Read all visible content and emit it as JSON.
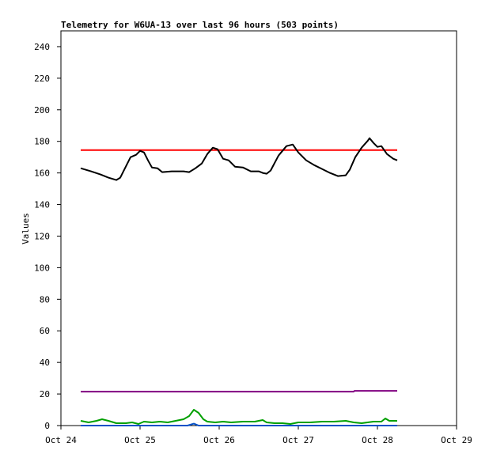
{
  "chart_data": {
    "type": "line",
    "title": "Telemetry for W6UA-13 over last 96 hours (503 points)",
    "ylabel": "Values",
    "xlabel": "",
    "ylim": [
      0,
      250
    ],
    "xlim": [
      "Oct 24",
      "Oct 29"
    ],
    "x_ticks": [
      "Oct 24",
      "Oct 25",
      "Oct 26",
      "Oct 27",
      "Oct 28",
      "Oct 29"
    ],
    "y_ticks": [
      0,
      20,
      40,
      60,
      80,
      100,
      120,
      140,
      160,
      180,
      200,
      220,
      240
    ],
    "grid": false,
    "series": [
      {
        "color": "#ff0000",
        "points": [
          [
            0.25,
            174.5
          ],
          [
            4.25,
            174.5
          ]
        ]
      },
      {
        "color": "#000000",
        "points": [
          [
            0.25,
            163
          ],
          [
            0.38,
            161
          ],
          [
            0.5,
            159
          ],
          [
            0.6,
            157
          ],
          [
            0.7,
            155.5
          ],
          [
            0.75,
            157
          ],
          [
            0.8,
            162
          ],
          [
            0.88,
            170
          ],
          [
            0.95,
            171.5
          ],
          [
            1.0,
            174
          ],
          [
            1.05,
            173
          ],
          [
            1.1,
            168
          ],
          [
            1.15,
            163.5
          ],
          [
            1.22,
            163
          ],
          [
            1.28,
            160.5
          ],
          [
            1.4,
            161
          ],
          [
            1.55,
            161
          ],
          [
            1.62,
            160.5
          ],
          [
            1.7,
            163
          ],
          [
            1.78,
            166
          ],
          [
            1.85,
            172
          ],
          [
            1.92,
            176
          ],
          [
            1.98,
            175
          ],
          [
            2.05,
            169
          ],
          [
            2.12,
            168
          ],
          [
            2.2,
            164
          ],
          [
            2.3,
            163.5
          ],
          [
            2.4,
            161
          ],
          [
            2.5,
            161
          ],
          [
            2.55,
            160
          ],
          [
            2.6,
            159.5
          ],
          [
            2.65,
            161.5
          ],
          [
            2.75,
            171
          ],
          [
            2.85,
            177
          ],
          [
            2.93,
            178
          ],
          [
            3.0,
            173
          ],
          [
            3.1,
            168
          ],
          [
            3.2,
            165
          ],
          [
            3.3,
            162.5
          ],
          [
            3.4,
            160
          ],
          [
            3.5,
            158
          ],
          [
            3.6,
            158.5
          ],
          [
            3.65,
            162
          ],
          [
            3.72,
            170
          ],
          [
            3.8,
            176
          ],
          [
            3.88,
            180.5
          ],
          [
            3.9,
            182
          ],
          [
            3.95,
            179
          ],
          [
            4.0,
            176.5
          ],
          [
            4.05,
            177
          ],
          [
            4.12,
            172
          ],
          [
            4.2,
            169
          ],
          [
            4.25,
            168
          ]
        ]
      },
      {
        "color": "#800080",
        "points": [
          [
            0.25,
            21.5
          ],
          [
            3.7,
            21.5
          ],
          [
            3.71,
            22
          ],
          [
            4.25,
            22
          ]
        ]
      },
      {
        "color": "#00a000",
        "points": [
          [
            0.25,
            3
          ],
          [
            0.35,
            2
          ],
          [
            0.45,
            3
          ],
          [
            0.52,
            4
          ],
          [
            0.6,
            3
          ],
          [
            0.7,
            1.5
          ],
          [
            0.82,
            1.5
          ],
          [
            0.9,
            2
          ],
          [
            0.98,
            1
          ],
          [
            1.05,
            2.5
          ],
          [
            1.15,
            2
          ],
          [
            1.25,
            2.5
          ],
          [
            1.35,
            2
          ],
          [
            1.45,
            3
          ],
          [
            1.55,
            4
          ],
          [
            1.62,
            6
          ],
          [
            1.68,
            10
          ],
          [
            1.74,
            8
          ],
          [
            1.8,
            4
          ],
          [
            1.85,
            2.5
          ],
          [
            1.95,
            2
          ],
          [
            2.05,
            2.5
          ],
          [
            2.15,
            2
          ],
          [
            2.3,
            2.5
          ],
          [
            2.45,
            2.5
          ],
          [
            2.55,
            3.5
          ],
          [
            2.6,
            2
          ],
          [
            2.7,
            1.5
          ],
          [
            2.8,
            1.5
          ],
          [
            2.9,
            1
          ],
          [
            3.0,
            2
          ],
          [
            3.15,
            2
          ],
          [
            3.3,
            2.5
          ],
          [
            3.45,
            2.5
          ],
          [
            3.6,
            3
          ],
          [
            3.7,
            2
          ],
          [
            3.8,
            1.5
          ],
          [
            3.95,
            2.5
          ],
          [
            4.05,
            2.5
          ],
          [
            4.1,
            4.5
          ],
          [
            4.15,
            3
          ],
          [
            4.25,
            3
          ]
        ]
      },
      {
        "color": "#0050c8",
        "points": [
          [
            0.25,
            0
          ],
          [
            1.6,
            0
          ],
          [
            1.68,
            1.2
          ],
          [
            1.74,
            0
          ],
          [
            4.25,
            0
          ]
        ]
      }
    ]
  }
}
